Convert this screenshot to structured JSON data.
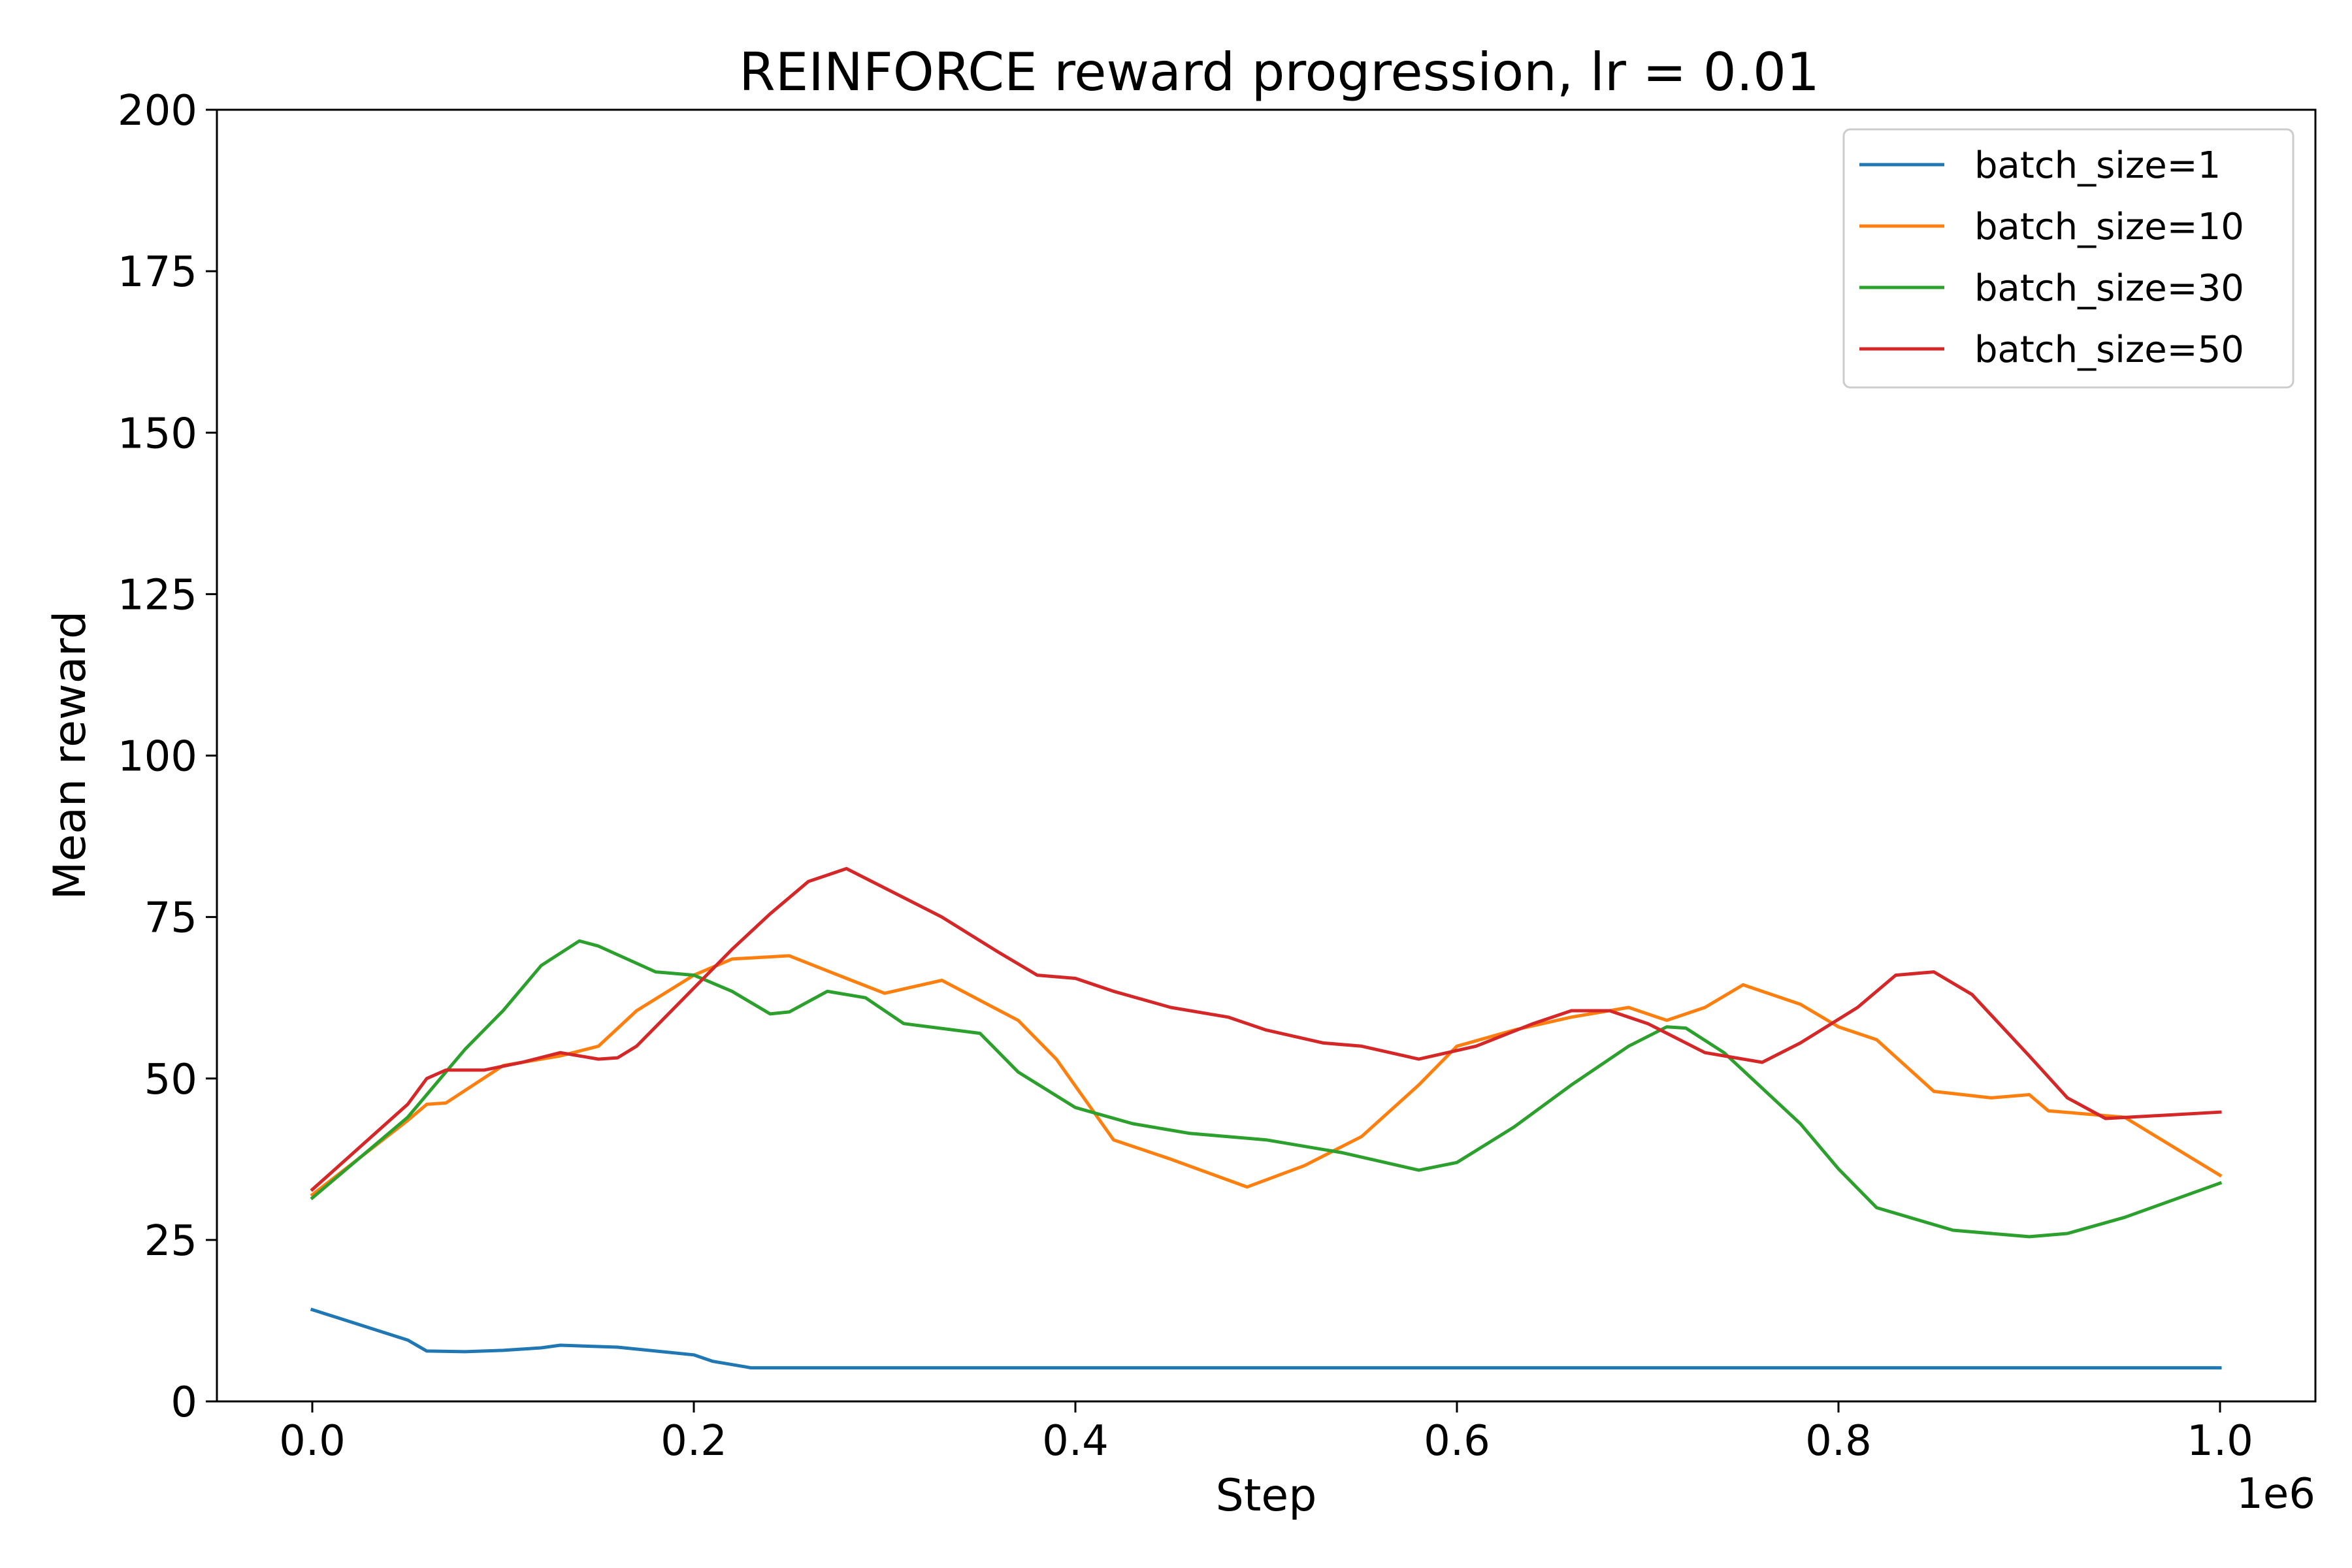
{
  "chart_data": {
    "type": "line",
    "title": "REINFORCE reward progression, lr = 0.01",
    "xlabel": "Step",
    "ylabel": "Mean reward",
    "x_offset_label": "1e6",
    "xlim": [
      -0.05,
      1.05
    ],
    "ylim": [
      0,
      200
    ],
    "x_ticks": [
      0.0,
      0.2,
      0.4,
      0.6,
      0.8,
      1.0
    ],
    "x_tick_labels": [
      "0.0",
      "0.2",
      "0.4",
      "0.6",
      "0.8",
      "1.0"
    ],
    "y_ticks": [
      0,
      25,
      50,
      75,
      100,
      125,
      150,
      175,
      200
    ],
    "y_tick_labels": [
      "0",
      "25",
      "50",
      "75",
      "100",
      "125",
      "150",
      "175",
      "200"
    ],
    "grid": false,
    "legend_position": "top-right",
    "series": [
      {
        "name": "batch_size=1",
        "color": "#1f77b4",
        "x": [
          0.0,
          0.05,
          0.06,
          0.08,
          0.1,
          0.12,
          0.13,
          0.16,
          0.2,
          0.21,
          0.23,
          0.3,
          0.5,
          0.7,
          0.9,
          1.0
        ],
        "y": [
          14.2,
          9.5,
          7.8,
          7.7,
          7.9,
          8.3,
          8.7,
          8.4,
          7.2,
          6.2,
          5.2,
          5.2,
          5.2,
          5.2,
          5.2,
          5.2
        ]
      },
      {
        "name": "batch_size=10",
        "color": "#ff7f0e",
        "x": [
          0.0,
          0.05,
          0.06,
          0.07,
          0.1,
          0.13,
          0.15,
          0.17,
          0.2,
          0.22,
          0.25,
          0.28,
          0.3,
          0.33,
          0.37,
          0.39,
          0.42,
          0.45,
          0.49,
          0.52,
          0.55,
          0.58,
          0.6,
          0.63,
          0.66,
          0.69,
          0.71,
          0.73,
          0.75,
          0.78,
          0.8,
          0.82,
          0.85,
          0.88,
          0.9,
          0.91,
          0.95,
          1.0
        ],
        "y": [
          32.0,
          43.5,
          46.0,
          46.2,
          52.0,
          53.5,
          55.0,
          60.5,
          66.0,
          68.5,
          69.0,
          65.5,
          63.2,
          65.2,
          59.0,
          53.0,
          40.5,
          37.5,
          33.2,
          36.5,
          41.0,
          49.0,
          55.0,
          57.5,
          59.5,
          61.0,
          59.0,
          61.0,
          64.5,
          61.5,
          58.0,
          56.0,
          48.0,
          47.0,
          47.5,
          45.0,
          44.0,
          35.0
        ]
      },
      {
        "name": "batch_size=30",
        "color": "#2ca02c",
        "x": [
          0.0,
          0.05,
          0.08,
          0.1,
          0.12,
          0.14,
          0.15,
          0.18,
          0.2,
          0.22,
          0.24,
          0.25,
          0.27,
          0.29,
          0.31,
          0.35,
          0.37,
          0.4,
          0.43,
          0.46,
          0.5,
          0.54,
          0.58,
          0.6,
          0.63,
          0.66,
          0.69,
          0.71,
          0.72,
          0.74,
          0.78,
          0.8,
          0.82,
          0.86,
          0.9,
          0.92,
          0.95,
          1.0
        ],
        "y": [
          31.5,
          44.0,
          54.5,
          60.5,
          67.5,
          71.3,
          70.5,
          66.5,
          66.0,
          63.5,
          60.0,
          60.3,
          63.5,
          62.5,
          58.5,
          57.0,
          51.0,
          45.5,
          43.0,
          41.5,
          40.5,
          38.5,
          35.8,
          37.0,
          42.5,
          49.0,
          55.0,
          58.0,
          57.8,
          54.0,
          43.0,
          36.0,
          30.0,
          26.5,
          25.5,
          26.0,
          28.5,
          33.8
        ]
      },
      {
        "name": "batch_size=50",
        "color": "#d62728",
        "x": [
          0.0,
          0.05,
          0.06,
          0.07,
          0.09,
          0.11,
          0.13,
          0.15,
          0.16,
          0.17,
          0.2,
          0.22,
          0.24,
          0.26,
          0.28,
          0.3,
          0.33,
          0.36,
          0.38,
          0.4,
          0.42,
          0.45,
          0.48,
          0.5,
          0.53,
          0.55,
          0.58,
          0.61,
          0.64,
          0.66,
          0.68,
          0.7,
          0.73,
          0.76,
          0.78,
          0.81,
          0.83,
          0.85,
          0.87,
          0.9,
          0.92,
          0.94,
          1.0
        ],
        "y": [
          32.8,
          46.0,
          50.0,
          51.3,
          51.3,
          52.5,
          54.0,
          53.0,
          53.2,
          55.0,
          64.0,
          70.0,
          75.5,
          80.5,
          82.5,
          79.5,
          75.0,
          69.5,
          66.0,
          65.5,
          63.5,
          61.0,
          59.5,
          57.5,
          55.5,
          55.0,
          53.0,
          55.0,
          58.5,
          60.5,
          60.5,
          58.5,
          54.0,
          52.5,
          55.5,
          61.0,
          66.0,
          66.5,
          63.0,
          53.5,
          47.0,
          43.8,
          44.8
        ]
      }
    ]
  }
}
